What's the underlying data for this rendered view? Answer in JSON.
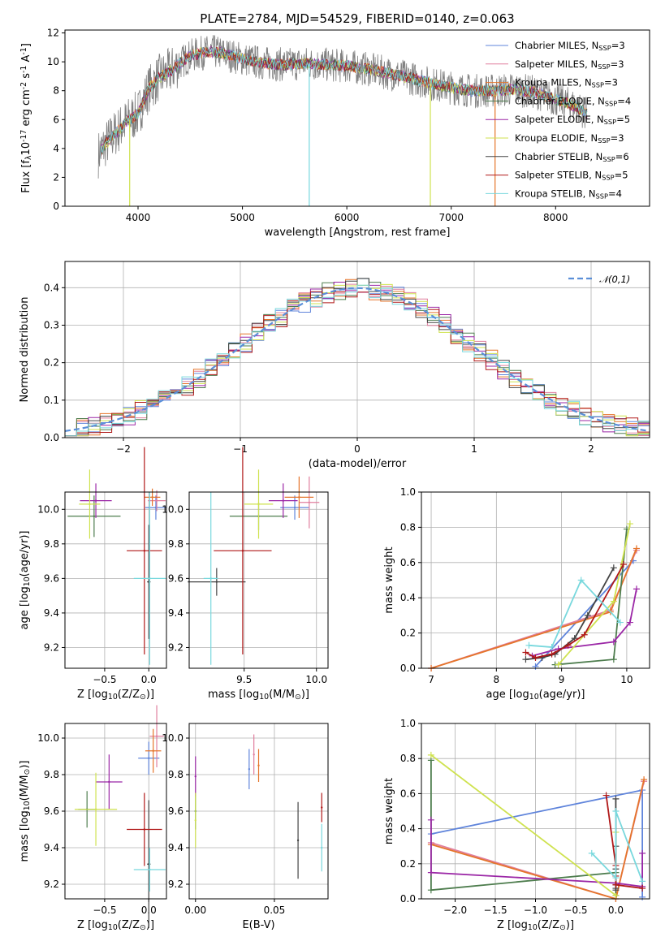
{
  "page_title": "PLATE=2784, MJD=54529, FIBERID=0140, z=0.063",
  "colors": {
    "Chabrier MILES": "#5f84db",
    "Salpeter MILES": "#e07e9e",
    "Kroupa MILES": "#e5752b",
    "Chabrier ELODIE": "#4e7d4e",
    "Salpeter ELODIE": "#9b27a6",
    "Kroupa ELODIE": "#cfe24f",
    "Chabrier STELIB": "#444444",
    "Salpeter STELIB": "#b01818",
    "Kroupa STELIB": "#78d8dd",
    "data": "#808080",
    "normal": "#5b8fd8"
  },
  "chart_data": [
    {
      "id": "spectrum",
      "type": "line",
      "title": "PLATE=2784, MJD=54529, FIBERID=0140, z=0.063",
      "xlabel": "wavelength [Angstrom, rest frame]",
      "ylabel": "Flux [f$_\\lambda$10$^{-17}$ erg cm$^{-2}$ s$^{-1}$ A$^{-1}$]",
      "xlim": [
        3300,
        8900
      ],
      "ylim": [
        0,
        12.2
      ],
      "xticks": [
        "4000",
        "5000",
        "6000",
        "7000",
        "8000"
      ],
      "yticks": [
        "0",
        "2",
        "4",
        "6",
        "8",
        "10",
        "12"
      ],
      "continuum": {
        "x": [
          3620,
          3700,
          3800,
          3900,
          4000,
          4100,
          4200,
          4300,
          4400,
          4500,
          4600,
          4700,
          4800,
          4900,
          5000,
          5200,
          5400,
          5600,
          5800,
          6000,
          6200,
          6400,
          6600,
          6800,
          7000,
          7200,
          7400,
          7600,
          7800,
          8000,
          8200,
          8300
        ],
        "y": [
          3.6,
          4.4,
          5.2,
          5.9,
          6.4,
          8.1,
          8.9,
          9.3,
          9.9,
          10.4,
          10.6,
          10.7,
          10.6,
          10.4,
          10.2,
          9.9,
          9.8,
          9.9,
          9.8,
          9.7,
          9.5,
          9.2,
          8.9,
          8.5,
          8.2,
          8.0,
          8.0,
          8.1,
          7.9,
          7.4,
          6.9,
          6.4
        ]
      },
      "series": [
        {
          "name": "Chabrier MILES",
          "legend": "Chabrier MILES, N$_{SSP}$=3"
        },
        {
          "name": "Salpeter MILES",
          "legend": "Salpeter MILES, N$_{SSP}$=3"
        },
        {
          "name": "Kroupa MILES",
          "legend": "Kroupa MILES, N$_{SSP}$=3"
        },
        {
          "name": "Chabrier ELODIE",
          "legend": "Chabrier ELODIE, N$_{SSP}$=4"
        },
        {
          "name": "Salpeter ELODIE",
          "legend": "Salpeter ELODIE, N$_{SSP}$=5"
        },
        {
          "name": "Kroupa ELODIE",
          "legend": "Kroupa ELODIE, N$_{SSP}$=3"
        },
        {
          "name": "Chabrier STELIB",
          "legend": "Chabrier STELIB, N$_{SSP}$=6"
        },
        {
          "name": "Salpeter STELIB",
          "legend": "Salpeter STELIB, N$_{SSP}$=5"
        },
        {
          "name": "Kroupa STELIB",
          "legend": "Kroupa STELIB, N$_{SSP}$=4"
        }
      ],
      "legend_position": "top-right"
    },
    {
      "id": "residuals",
      "type": "histogram",
      "xlabel": "(data-model)/error",
      "ylabel": "Normed distribution",
      "xlim": [
        -2.5,
        2.5
      ],
      "ylim": [
        0,
        0.47
      ],
      "xticks": [
        "−2",
        "−1",
        "0",
        "1",
        "2"
      ],
      "yticks": [
        "0.0",
        "0.1",
        "0.2",
        "0.3",
        "0.4"
      ],
      "legend": "$\\mathcal{N}(0,1)$",
      "legend_position": "top-right",
      "grid": true
    },
    {
      "id": "age_vs_Z",
      "type": "errorbar",
      "xlabel": "Z [log$_{10}$(Z/Z$_\\odot$)]",
      "ylabel": "age  [log$_{10}$(age/yr)]",
      "xlim": [
        -0.95,
        0.2
      ],
      "ylim": [
        9.08,
        10.1
      ],
      "xticks": [
        "−0.5",
        "0.0"
      ],
      "yticks": [
        "9.2",
        "9.4",
        "9.6",
        "9.8",
        "10.0"
      ],
      "points": [
        {
          "name": "Chabrier MILES",
          "x": 0.08,
          "xerr": 0.12,
          "y": 10.01,
          "yerr": 0.07
        },
        {
          "name": "Salpeter MILES",
          "x": 0.09,
          "xerr": 0.1,
          "y": 10.05,
          "yerr": 0.06
        },
        {
          "name": "Kroupa MILES",
          "x": 0.04,
          "xerr": 0.09,
          "y": 10.07,
          "yerr": 0.05
        },
        {
          "name": "Chabrier ELODIE",
          "x": -0.62,
          "xerr": 0.3,
          "y": 9.96,
          "yerr": 0.12
        },
        {
          "name": "Salpeter ELODIE",
          "x": -0.6,
          "xerr": 0.18,
          "y": 10.05,
          "yerr": 0.1
        },
        {
          "name": "Kroupa ELODIE",
          "x": -0.67,
          "xerr": 0.12,
          "y": 10.03,
          "yerr": 0.2
        },
        {
          "name": "Chabrier STELIB",
          "x": 0.0,
          "xerr": 0.02,
          "y": 9.58,
          "yerr": 0.33
        },
        {
          "name": "Salpeter STELIB",
          "x": -0.05,
          "xerr": 0.2,
          "y": 9.76,
          "yerr": 0.6
        },
        {
          "name": "Kroupa STELIB",
          "x": 0.01,
          "xerr": 0.18,
          "y": 9.6,
          "yerr": 0.5
        }
      ]
    },
    {
      "id": "age_vs_mass",
      "type": "errorbar",
      "xlabel": "mass [log$_{10}$(M/M$_\\odot$)]",
      "ylabel": "",
      "xlim": [
        9.12,
        10.08
      ],
      "ylim": [
        9.08,
        10.1
      ],
      "xticks": [
        "9.5",
        "10.0"
      ],
      "yticks": [
        "9.2",
        "9.4",
        "9.6",
        "9.8",
        "10.0"
      ],
      "points": [
        {
          "name": "Chabrier MILES",
          "x": 9.85,
          "xerr": 0.1,
          "y": 10.01,
          "yerr": 0.07
        },
        {
          "name": "Salpeter MILES",
          "x": 9.95,
          "xerr": 0.07,
          "y": 10.04,
          "yerr": 0.15
        },
        {
          "name": "Kroupa MILES",
          "x": 9.88,
          "xerr": 0.1,
          "y": 10.07,
          "yerr": 0.12
        },
        {
          "name": "Chabrier ELODIE",
          "x": 9.6,
          "xerr": 0.2,
          "y": 9.96,
          "yerr": 0.08
        },
        {
          "name": "Salpeter ELODIE",
          "x": 9.77,
          "xerr": 0.1,
          "y": 10.05,
          "yerr": 0.1
        },
        {
          "name": "Kroupa ELODIE",
          "x": 9.6,
          "xerr": 0.1,
          "y": 10.03,
          "yerr": 0.2
        },
        {
          "name": "Chabrier STELIB",
          "x": 9.31,
          "xerr": 0.2,
          "y": 9.58,
          "yerr": 0.08
        },
        {
          "name": "Salpeter STELIB",
          "x": 9.49,
          "xerr": 0.2,
          "y": 9.76,
          "yerr": 0.6
        },
        {
          "name": "Kroupa STELIB",
          "x": 9.27,
          "xerr": 0.05,
          "y": 9.6,
          "yerr": 0.5
        }
      ]
    },
    {
      "id": "mass_vs_Z",
      "type": "errorbar",
      "xlabel": "Z [log$_{10}$(Z/Z$_\\odot$)]",
      "ylabel": "mass [log$_{10}$(M/M$_\\odot$)]",
      "xlim": [
        -0.95,
        0.2
      ],
      "ylim": [
        9.12,
        10.08
      ],
      "xticks": [
        "−0.5",
        "0.0"
      ],
      "yticks": [
        "9.2",
        "9.4",
        "9.6",
        "9.8",
        "10.0"
      ],
      "points": [
        {
          "name": "Chabrier MILES",
          "x": 0.0,
          "xerr": 0.12,
          "y": 9.89,
          "yerr": 0.09
        },
        {
          "name": "Salpeter MILES",
          "x": 0.09,
          "xerr": 0.08,
          "y": 10.01,
          "yerr": 0.17
        },
        {
          "name": "Kroupa MILES",
          "x": 0.05,
          "xerr": 0.09,
          "y": 9.93,
          "yerr": 0.12
        },
        {
          "name": "Chabrier ELODIE",
          "x": -0.7,
          "xerr": 0.1,
          "y": 9.61,
          "yerr": 0.1
        },
        {
          "name": "Salpeter ELODIE",
          "x": -0.45,
          "xerr": 0.15,
          "y": 9.76,
          "yerr": 0.15
        },
        {
          "name": "Kroupa ELODIE",
          "x": -0.6,
          "xerr": 0.24,
          "y": 9.61,
          "yerr": 0.2
        },
        {
          "name": "Chabrier STELIB",
          "x": 0.0,
          "xerr": 0.02,
          "y": 9.31,
          "yerr": 0.35
        },
        {
          "name": "Salpeter STELIB",
          "x": -0.05,
          "xerr": 0.2,
          "y": 9.5,
          "yerr": 0.2
        },
        {
          "name": "Kroupa STELIB",
          "x": 0.01,
          "xerr": 0.18,
          "y": 9.28,
          "yerr": 0.12
        }
      ]
    },
    {
      "id": "mass_vs_ebv",
      "type": "errorbar",
      "xlabel": "E(B-V)",
      "ylabel": "",
      "xlim": [
        -0.004,
        0.084
      ],
      "ylim": [
        9.12,
        10.08
      ],
      "xticks": [
        "0.00",
        "0.05"
      ],
      "yticks": [
        "9.2",
        "9.4",
        "9.6",
        "9.8",
        "10.0"
      ],
      "points": [
        {
          "name": "Chabrier MILES",
          "x": 0.034,
          "y": 9.83,
          "yerr": 0.11
        },
        {
          "name": "Salpeter MILES",
          "x": 0.037,
          "y": 9.91,
          "yerr": 0.11
        },
        {
          "name": "Kroupa MILES",
          "x": 0.04,
          "y": 9.85,
          "yerr": 0.09
        },
        {
          "name": "Chabrier ELODIE",
          "x": 0.0,
          "y": 9.6,
          "yerr": 0.1
        },
        {
          "name": "Salpeter ELODIE",
          "x": 0.0,
          "y": 9.79,
          "yerr": 0.11
        },
        {
          "name": "Kroupa ELODIE",
          "x": 0.0,
          "y": 9.55,
          "yerr": 0.15
        },
        {
          "name": "Chabrier STELIB",
          "x": 0.065,
          "y": 9.44,
          "yerr": 0.21
        },
        {
          "name": "Salpeter STELIB",
          "x": 0.08,
          "y": 9.62,
          "yerr": 0.08
        },
        {
          "name": "Kroupa STELIB",
          "x": 0.08,
          "y": 9.4,
          "yerr": 0.13
        }
      ]
    },
    {
      "id": "weight_vs_age",
      "type": "line",
      "xlabel": "age  [log$_{10}$(age/yr)]",
      "ylabel": "mass weight",
      "xlim": [
        6.85,
        10.35
      ],
      "ylim": [
        0,
        1
      ],
      "xticks": [
        "7",
        "8",
        "9",
        "10"
      ],
      "yticks": [
        "0.0",
        "0.2",
        "0.4",
        "0.6",
        "0.8",
        "1.0"
      ],
      "series": [
        {
          "name": "Chabrier MILES",
          "x": [
            8.6,
            10.1
          ],
          "y": [
            0.01,
            0.61
          ]
        },
        {
          "name": "Salpeter MILES",
          "x": [
            7.0,
            9.75,
            10.15
          ],
          "y": [
            0.0,
            0.33,
            0.67
          ]
        },
        {
          "name": "Kroupa MILES",
          "x": [
            7.0,
            9.75,
            10.15
          ],
          "y": [
            0.0,
            0.32,
            0.68
          ]
        },
        {
          "name": "Chabrier ELODIE",
          "x": [
            8.9,
            9.8,
            10.0
          ],
          "y": [
            0.02,
            0.05,
            0.79
          ]
        },
        {
          "name": "Salpeter ELODIE",
          "x": [
            8.55,
            8.95,
            9.8,
            10.05,
            10.15
          ],
          "y": [
            0.07,
            0.11,
            0.15,
            0.26,
            0.45
          ]
        },
        {
          "name": "Kroupa ELODIE",
          "x": [
            8.95,
            9.8,
            10.05
          ],
          "y": [
            0.02,
            0.38,
            0.82
          ]
        },
        {
          "name": "Chabrier STELIB",
          "x": [
            8.45,
            8.7,
            8.9,
            9.2,
            9.4,
            9.8
          ],
          "y": [
            0.05,
            0.06,
            0.08,
            0.17,
            0.3,
            0.57
          ]
        },
        {
          "name": "Salpeter STELIB",
          "x": [
            8.45,
            8.6,
            8.85,
            9.1,
            9.35,
            9.95
          ],
          "y": [
            0.09,
            0.06,
            0.08,
            0.13,
            0.19,
            0.59
          ]
        },
        {
          "name": "Kroupa STELIB",
          "x": [
            8.5,
            8.85,
            9.3,
            9.9
          ],
          "y": [
            0.13,
            0.12,
            0.5,
            0.26
          ]
        }
      ]
    },
    {
      "id": "weight_vs_Z",
      "type": "line",
      "xlabel": "Z [log$_{10}$(Z/Z$_\\odot$)]",
      "ylabel": "mass weight",
      "xlim": [
        -2.42,
        0.42
      ],
      "ylim": [
        0,
        1
      ],
      "xticks": [
        "−2.0",
        "−1.5",
        "−1.0",
        "−0.5",
        "0.0",
        "0.5"
      ],
      "yticks": [
        "0.0",
        "0.2",
        "0.4",
        "0.6",
        "0.8",
        "1.0"
      ],
      "series": [
        {
          "name": "Chabrier MILES",
          "x": [
            -2.3,
            0.33,
            0.33
          ],
          "y": [
            0.37,
            0.62,
            0.01
          ]
        },
        {
          "name": "Salpeter MILES",
          "x": [
            -2.3,
            0.0,
            0.35
          ],
          "y": [
            0.32,
            0.0,
            0.67
          ]
        },
        {
          "name": "Kroupa MILES",
          "x": [
            -2.3,
            0.0,
            0.35
          ],
          "y": [
            0.31,
            0.0,
            0.68
          ]
        },
        {
          "name": "Chabrier ELODIE",
          "x": [
            -2.3,
            -2.3,
            0.0,
            0.0
          ],
          "y": [
            0.79,
            0.05,
            0.15,
            0.02
          ]
        },
        {
          "name": "Salpeter ELODIE",
          "x": [
            -2.3,
            -2.3,
            0.0,
            0.33,
            0.33
          ],
          "y": [
            0.45,
            0.15,
            0.09,
            0.07,
            0.26
          ]
        },
        {
          "name": "Kroupa ELODIE",
          "x": [
            -2.3,
            0.0,
            0.0
          ],
          "y": [
            0.82,
            0.02,
            0.38
          ]
        },
        {
          "name": "Chabrier STELIB",
          "x": [
            0.0,
            0.0,
            0.0,
            0.0,
            0.0,
            0.0
          ],
          "y": [
            0.57,
            0.3,
            0.17,
            0.08,
            0.06,
            0.05
          ]
        },
        {
          "name": "Salpeter STELIB",
          "x": [
            -0.12,
            0.0,
            0.0,
            0.0,
            0.33
          ],
          "y": [
            0.59,
            0.19,
            0.13,
            0.08,
            0.06
          ]
        },
        {
          "name": "Kroupa STELIB",
          "x": [
            -0.3,
            0.0,
            0.0,
            0.33
          ],
          "y": [
            0.26,
            0.12,
            0.5,
            0.1
          ]
        }
      ]
    }
  ]
}
